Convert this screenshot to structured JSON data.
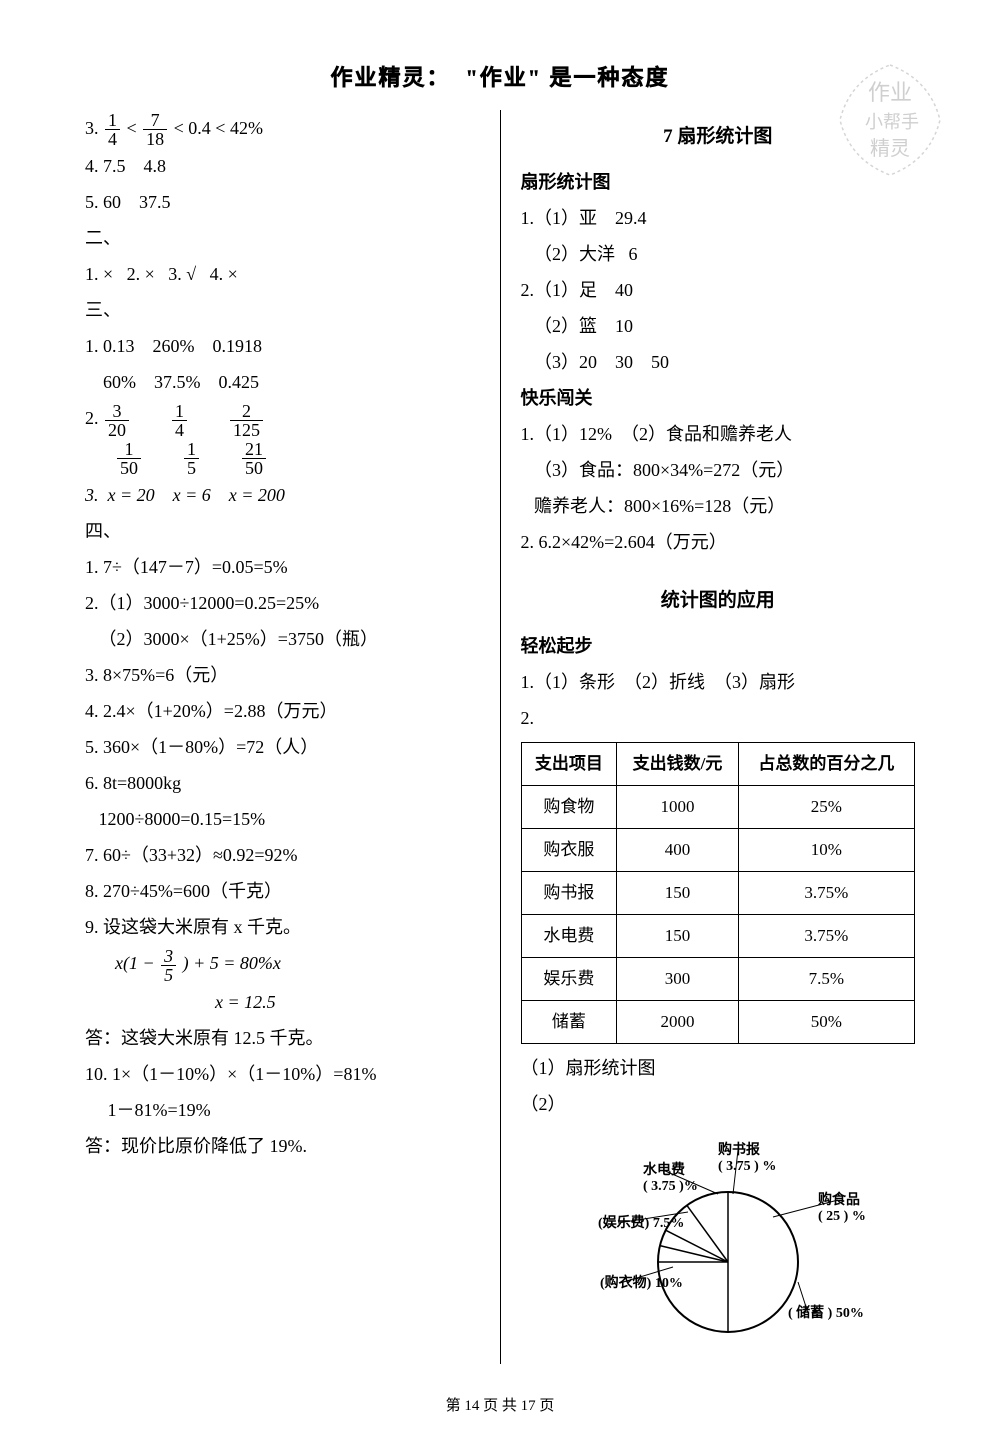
{
  "header": "作业精灵：  \"作业\" 是一种态度",
  "footer": "第 14 页 共 17 页",
  "watermark": {
    "line1": "作业",
    "line2": "小帮手",
    "line3": "精灵"
  },
  "left": {
    "l3_pre": "3.  ",
    "l3_frac1_n": "1",
    "l3_frac1_d": "4",
    "l3_mid1": " < ",
    "l3_frac2_n": "7",
    "l3_frac2_d": "18",
    "l3_post": " < 0.4 < 42%",
    "l4": "4.  7.5    4.8",
    "l5": "5.  60    37.5",
    "s2": "二、",
    "s2_1": "1. ×   2. ×   3. √   4. ×",
    "s3": "三、",
    "s3_1a": "1.  0.13    260%    0.1918",
    "s3_1b": "    60%    37.5%    0.425",
    "s3_2_pre": "2.  ",
    "f_3_20_n": "3",
    "f_3_20_d": "20",
    "f_1_4_n": "1",
    "f_1_4_d": "4",
    "f_2_125_n": "2",
    "f_2_125_d": "125",
    "f_1_50_n": "1",
    "f_1_50_d": "50",
    "f_1_5_n": "1",
    "f_1_5_d": "5",
    "f_21_50_n": "21",
    "f_21_50_d": "50",
    "s3_3": "3.  x = 20    x = 6    x = 200",
    "s4": "四、",
    "s4_1": "1.  7÷（147－7）=0.05=5%",
    "s4_2a": "2.（1）3000÷12000=0.25=25%",
    "s4_2b": "   （2）3000×（1+25%）=3750（瓶）",
    "s4_3": "3. 8×75%=6（元）",
    "s4_4": "4. 2.4×（1+20%）=2.88（万元）",
    "s4_5": "5. 360×（1－80%）=72（人）",
    "s4_6a": "6. 8t=8000kg",
    "s4_6b": "   1200÷8000=0.15=15%",
    "s4_7": "7. 60÷（33+32）≈0.92=92%",
    "s4_8": "8. 270÷45%=600（千克）",
    "s4_9a": "9.  设这袋大米原有 x 千克。",
    "s4_9eq_pre": "x(1 − ",
    "f_3_5_n": "3",
    "f_3_5_d": "5",
    "s4_9eq_post": ") + 5 = 80%x",
    "s4_9b": "x = 12.5",
    "s4_9c": "答：这袋大米原有 12.5 千克。",
    "s4_10a": "10.  1×（1－10%）×（1－10%）=81%",
    "s4_10b": "     1－81%=19%",
    "s4_10c": "答：现价比原价降低了 19%."
  },
  "right": {
    "title7": "7 扇形统计图",
    "sub1": "扇形统计图",
    "r1_1": "1.（1）亚    29.4",
    "r1_2": "   （2）大洋   6",
    "r2_1": "2.（1）足    40",
    "r2_2": "   （2）篮    10",
    "r2_3": "   （3）20    30    50",
    "sub2": "快乐闯关",
    "k1_1": "1.（1）12%  （2）食品和赡养老人",
    "k1_2": "   （3）食品：800×34%=272（元）",
    "k1_3": "   赡养老人：800×16%=128（元）",
    "k2": "2.  6.2×42%=2.604（万元）",
    "title_app": "统计图的应用",
    "sub3": "轻松起步",
    "q1": "1.（1）条形  （2）折线  （3）扇形",
    "q2": "2.",
    "table": {
      "headers": [
        "支出项目",
        "支出钱数/元",
        "占总数的百分之几"
      ],
      "rows": [
        [
          "购食物",
          "1000",
          "25%"
        ],
        [
          "购衣服",
          "400",
          "10%"
        ],
        [
          "购书报",
          "150",
          "3.75%"
        ],
        [
          "水电费",
          "150",
          "3.75%"
        ],
        [
          "娱乐费",
          "300",
          "7.5%"
        ],
        [
          "储蓄",
          "2000",
          "50%"
        ]
      ]
    },
    "q2_a": "（1）扇形统计图",
    "q2_b": "（2）",
    "pie": {
      "title": "购书报",
      "labels": {
        "shubao": "购书报\n( 3.75 ) %",
        "shuidian": "水电费\n( 3.75 )%",
        "yule": "(娱乐费) 7.5%",
        "yifu": "(购衣物) 10%",
        "chuxu": "( 储蓄 ) 50%",
        "shipin": "购食品\n( 25 ) %"
      },
      "colors": {
        "stroke": "#000000",
        "fill": "#ffffff"
      }
    }
  }
}
